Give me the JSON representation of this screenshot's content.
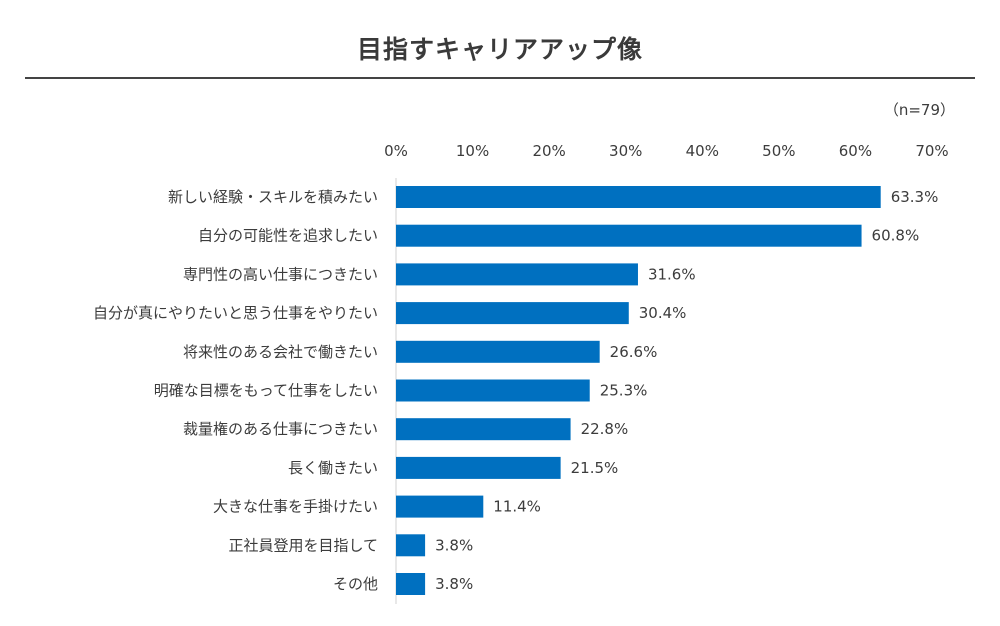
{
  "chart_data": {
    "type": "bar",
    "orientation": "horizontal",
    "title": "目指すキャリアアップ像",
    "note": "（n=79）",
    "categories": [
      "新しい経験・スキルを積みたい",
      "自分の可能性を追求したい",
      "専門性の高い仕事につきたい",
      "自分が真にやりたいと思う仕事をやりたい",
      "将来性のある会社で働きたい",
      "明確な目標をもって仕事をしたい",
      "裁量権のある仕事につきたい",
      "長く働きたい",
      "大きな仕事を手掛けたい",
      "正社員登用を目指して",
      "その他"
    ],
    "values": [
      63.3,
      60.8,
      31.6,
      30.4,
      26.6,
      25.3,
      22.8,
      21.5,
      11.4,
      3.8,
      3.8
    ],
    "value_labels": [
      "63.3%",
      "60.8%",
      "31.6%",
      "30.4%",
      "26.6%",
      "25.3%",
      "22.8%",
      "21.5%",
      "11.4%",
      "3.8%",
      "3.8%"
    ],
    "x_ticks": [
      "0%",
      "10%",
      "20%",
      "30%",
      "40%",
      "50%",
      "60%",
      "70%"
    ],
    "xlim": [
      0,
      70
    ],
    "axis_position": "top",
    "grid": false,
    "bar_color": "#0070c0"
  }
}
